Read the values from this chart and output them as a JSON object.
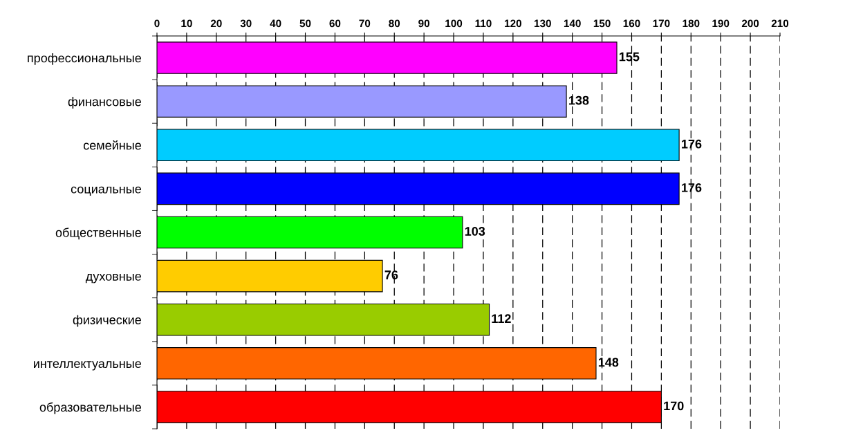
{
  "chart_data": {
    "type": "bar",
    "orientation": "horizontal",
    "categories": [
      "профессиональные",
      "финансовые",
      "семейные",
      "социальные",
      "общественные",
      "духовные",
      "физические",
      "интеллектуальные",
      "образовательные"
    ],
    "values": [
      155,
      138,
      176,
      176,
      103,
      76,
      112,
      148,
      170
    ],
    "colors": [
      "#ff00ff",
      "#9999ff",
      "#00ccff",
      "#0000ff",
      "#00ff00",
      "#ffcc00",
      "#99cc00",
      "#ff6600",
      "#ff0000"
    ],
    "xlim": [
      0,
      210
    ],
    "xticks": [
      0,
      10,
      20,
      30,
      40,
      50,
      60,
      70,
      80,
      90,
      100,
      110,
      120,
      130,
      140,
      150,
      160,
      170,
      180,
      190,
      200,
      210
    ],
    "grid": "x",
    "line_style": "dashed",
    "data_labels": true
  }
}
